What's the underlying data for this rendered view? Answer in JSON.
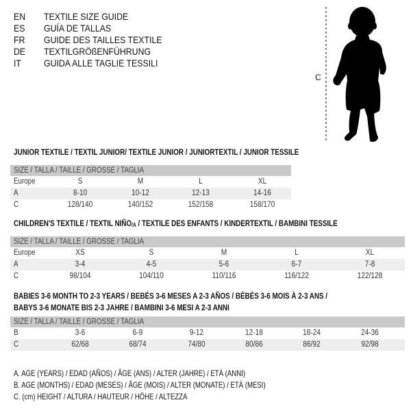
{
  "languages": [
    {
      "code": "EN",
      "text": "TEXTILE SIZE GUIDE"
    },
    {
      "code": "ES",
      "text": "GUÍA DE TALLAS"
    },
    {
      "code": "FR",
      "text": "GUIDE DES TAILLES TEXTILE"
    },
    {
      "code": "DE",
      "text": "TEXTILGRÖßENFÜHRUNG"
    },
    {
      "code": "IT",
      "text": "GUIDA ALLE TAGLIE TESSILI"
    }
  ],
  "figure": {
    "measure_label": "C",
    "icon": "baby-silhouette"
  },
  "junior": {
    "title": "JUNIOR TEXTILE / TEXTIL JUNIOR/ TEXTILE JUNIOR / JUNIORTEXTIL / JUNIOR TESSILE",
    "header": "SIZE / TALLA / TAILLE / GRÖSSE / TAGLIA",
    "rows": [
      {
        "label": "Europe",
        "values": [
          "S",
          "M",
          "L",
          "XL"
        ]
      },
      {
        "label": "A",
        "values": [
          "8-10",
          "10-12",
          "12-13",
          "14-16"
        ]
      },
      {
        "label": "C",
        "values": [
          "128/140",
          "140/152",
          "152/158",
          "158/170"
        ]
      }
    ]
  },
  "children": {
    "title_pre": "CHILDREN'S TEXTILE / TEXTIL NIÑO",
    "title_sub": "/A",
    "title_post": " / TEXTILE DES ENFANTS / KINDERTEXTIL / BAMBINI TESSILE",
    "header": "SIZE / TALLA / TAILLE / GRÖSSE / TAGLIA",
    "rows": [
      {
        "label": "Europe",
        "values": [
          "XS",
          "S",
          "M",
          "L",
          "XL"
        ]
      },
      {
        "label": "A",
        "values": [
          "3-4",
          "4-5",
          "5-6",
          "6-7",
          "7-8"
        ]
      },
      {
        "label": "C",
        "values": [
          "98/104",
          "104/110",
          "110/116",
          "116/122",
          "122/128"
        ]
      }
    ]
  },
  "babies": {
    "title_line1": "BABIES 3-6 MONTH TO 2-3 YEARS / BEBÉS 3-6 MESES A 2-3 AÑOS / BÉBÉS 3-6 MOIS À 2-3 ANS /",
    "title_line2": "BABYS 3-6 MONATE BIS 2-3 JAHRE / BAMBINI 3-6 MESI A 2-3 ANNI",
    "header": "SIZE / TALLA / TAILLE / GRÖSSE / TAGLIA",
    "rows": [
      {
        "label": "B",
        "values": [
          "3-6",
          "6-9",
          "9-12",
          "12-18",
          "18-24",
          "24-36"
        ]
      },
      {
        "label": "C",
        "values": [
          "62/68",
          "68/74",
          "74/80",
          "80/86",
          "86/92",
          "92/98"
        ]
      }
    ]
  },
  "legend": [
    "A. AGE (YEARS) / EDAD (AÑOS) / ÂGE (ANS) / ALTER (JAHRE) / ETÀ (ANNI)",
    "B. AGE (MONTHS) / EDAD (MESES) / ÂGE (MOIS) / ALTER (MONATE) / ETÀ (MESI)",
    "C. (cm) HEIGHT / ALTURA / HAUTEUR / HÖHE / ALTEZZA"
  ]
}
